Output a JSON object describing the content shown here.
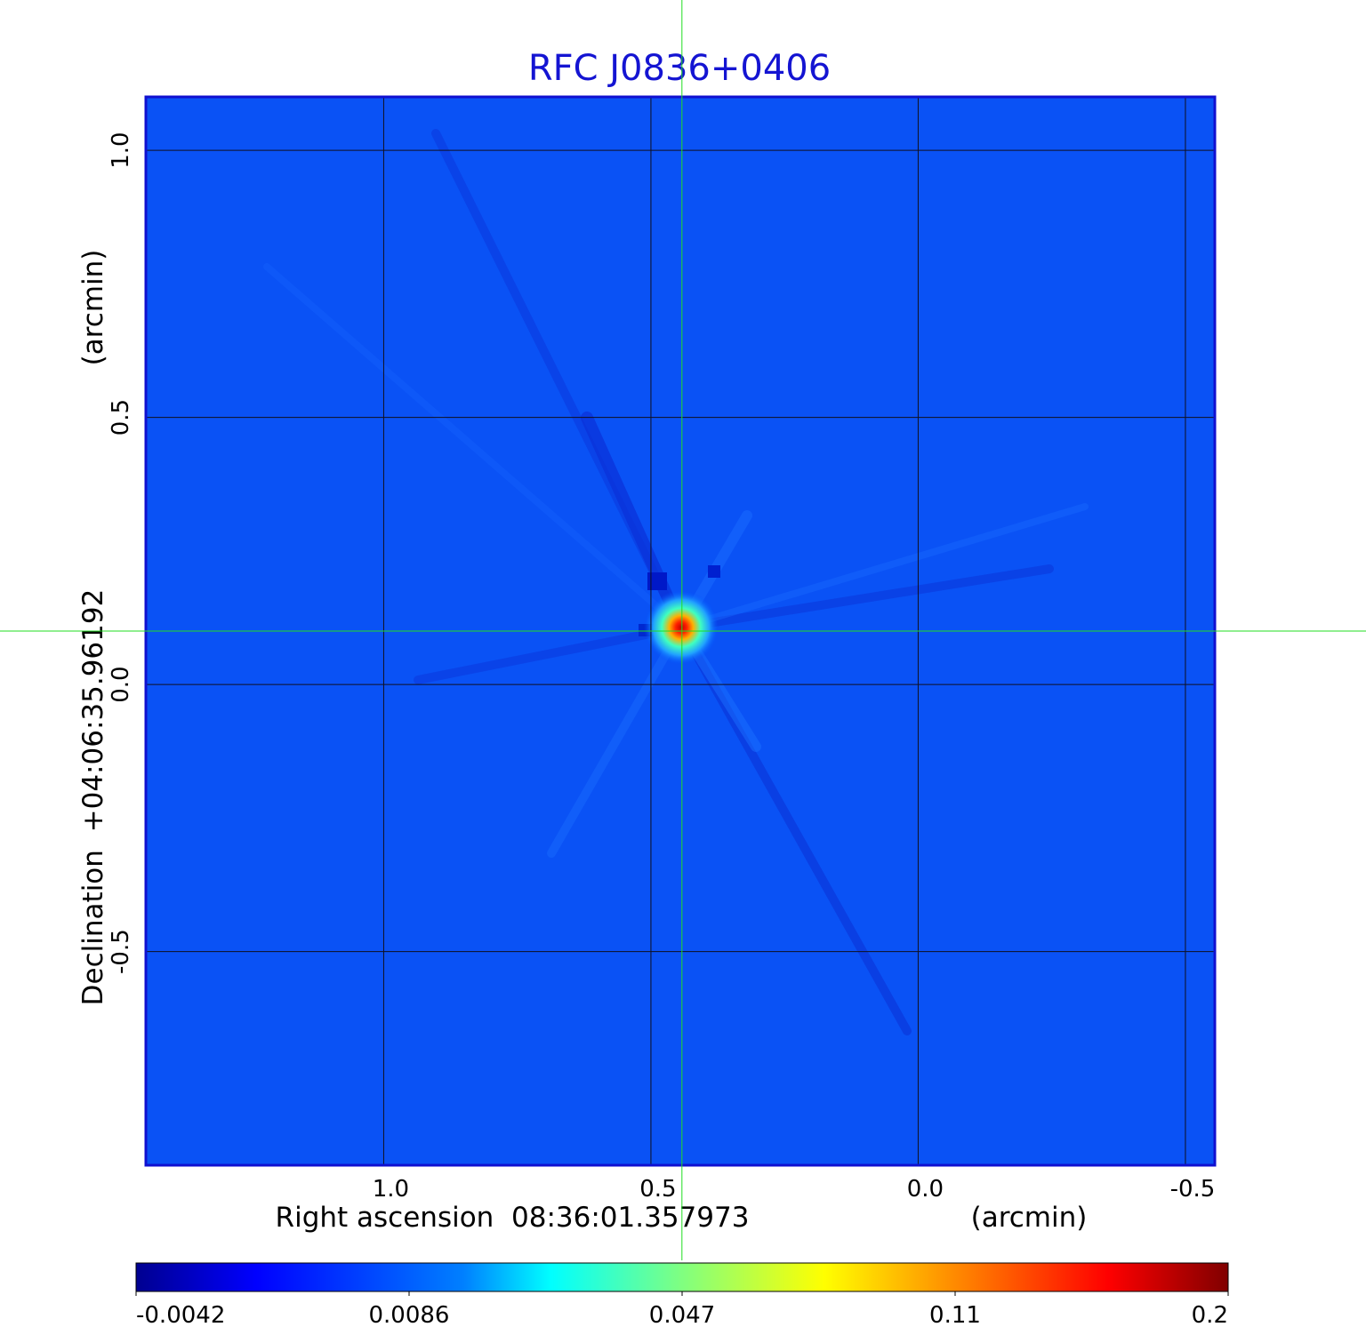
{
  "chart_data": {
    "type": "heatmap",
    "title": "RFC J0836+0406",
    "xlabel": "Right ascension  08:36:01.357973",
    "xunit": "(arcmin)",
    "ylabel": "Declination  +04:06:35.96192",
    "yunit": "(arcmin)",
    "x_ticks": [
      "1.0",
      "0.5",
      "0.0",
      "-0.5"
    ],
    "x_tick_values": [
      1.0,
      0.5,
      0.0,
      -0.5
    ],
    "y_ticks": [
      "1.0",
      "0.5",
      "0.0",
      "-0.5"
    ],
    "y_tick_values": [
      1.0,
      0.5,
      0.0,
      -0.5
    ],
    "xlim": [
      1.445,
      -0.555
    ],
    "ylim": [
      -0.9,
      1.1
    ],
    "grid": true,
    "crosshair": {
      "x": 0.442,
      "y": 0.1,
      "color": "#22dd22"
    },
    "source_peak": {
      "x": 0.44,
      "y": 0.1,
      "value": 0.2
    },
    "background_value": 0.0086,
    "colorbar": {
      "ticks": [
        "-0.0042",
        "0.0086",
        "0.047",
        "0.11",
        "0.2"
      ],
      "tick_values": [
        -0.0042,
        0.0086,
        0.047,
        0.11,
        0.2
      ],
      "colormap": "jet",
      "colors": [
        "#000080",
        "#0000ff",
        "#0080ff",
        "#00ffff",
        "#80ff80",
        "#ffff00",
        "#ff8000",
        "#ff0000",
        "#800000"
      ]
    }
  }
}
